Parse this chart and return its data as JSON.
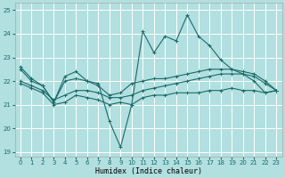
{
  "xlabel": "Humidex (Indice chaleur)",
  "background_color": "#b2dfdf",
  "grid_color": "#ffffff",
  "line_color": "#1a6b6b",
  "xlim": [
    -0.5,
    23.5
  ],
  "ylim": [
    18.8,
    25.3
  ],
  "yticks": [
    19,
    20,
    21,
    22,
    23,
    24,
    25
  ],
  "xticks": [
    0,
    1,
    2,
    3,
    4,
    5,
    6,
    7,
    8,
    9,
    10,
    11,
    12,
    13,
    14,
    15,
    16,
    17,
    18,
    19,
    20,
    21,
    22,
    23
  ],
  "series": [
    {
      "x": [
        0,
        1,
        2,
        3,
        4,
        5,
        6,
        7,
        8,
        9,
        10,
        11,
        12,
        13,
        14,
        15,
        16,
        17,
        18,
        19,
        20,
        21,
        22,
        23
      ],
      "y": [
        22.6,
        22.1,
        21.8,
        21.1,
        22.2,
        22.4,
        22.0,
        21.9,
        20.3,
        19.2,
        21.0,
        24.1,
        23.2,
        23.9,
        23.7,
        24.8,
        23.9,
        23.5,
        22.9,
        22.5,
        22.3,
        22.0,
        21.5,
        21.6
      ]
    },
    {
      "x": [
        0,
        1,
        2,
        3,
        4,
        5,
        6,
        7,
        8,
        9,
        10,
        11,
        12,
        13,
        14,
        15,
        16,
        17,
        18,
        19,
        20,
        21,
        22,
        23
      ],
      "y": [
        22.5,
        22.0,
        21.8,
        21.1,
        22.0,
        22.1,
        22.0,
        21.8,
        21.4,
        21.5,
        21.9,
        22.0,
        22.1,
        22.1,
        22.2,
        22.3,
        22.4,
        22.5,
        22.5,
        22.5,
        22.4,
        22.3,
        22.0,
        21.6
      ]
    },
    {
      "x": [
        0,
        1,
        2,
        3,
        4,
        5,
        6,
        7,
        8,
        9,
        10,
        11,
        12,
        13,
        14,
        15,
        16,
        17,
        18,
        19,
        20,
        21,
        22,
        23
      ],
      "y": [
        22.0,
        21.8,
        21.6,
        21.2,
        21.4,
        21.6,
        21.6,
        21.5,
        21.3,
        21.3,
        21.4,
        21.6,
        21.7,
        21.8,
        21.9,
        22.0,
        22.1,
        22.2,
        22.3,
        22.3,
        22.3,
        22.2,
        21.9,
        21.6
      ]
    },
    {
      "x": [
        0,
        1,
        2,
        3,
        4,
        5,
        6,
        7,
        8,
        9,
        10,
        11,
        12,
        13,
        14,
        15,
        16,
        17,
        18,
        19,
        20,
        21,
        22,
        23
      ],
      "y": [
        21.9,
        21.7,
        21.5,
        21.0,
        21.1,
        21.4,
        21.3,
        21.2,
        21.0,
        21.1,
        21.0,
        21.3,
        21.4,
        21.4,
        21.5,
        21.5,
        21.5,
        21.6,
        21.6,
        21.7,
        21.6,
        21.6,
        21.5,
        21.6
      ]
    }
  ]
}
